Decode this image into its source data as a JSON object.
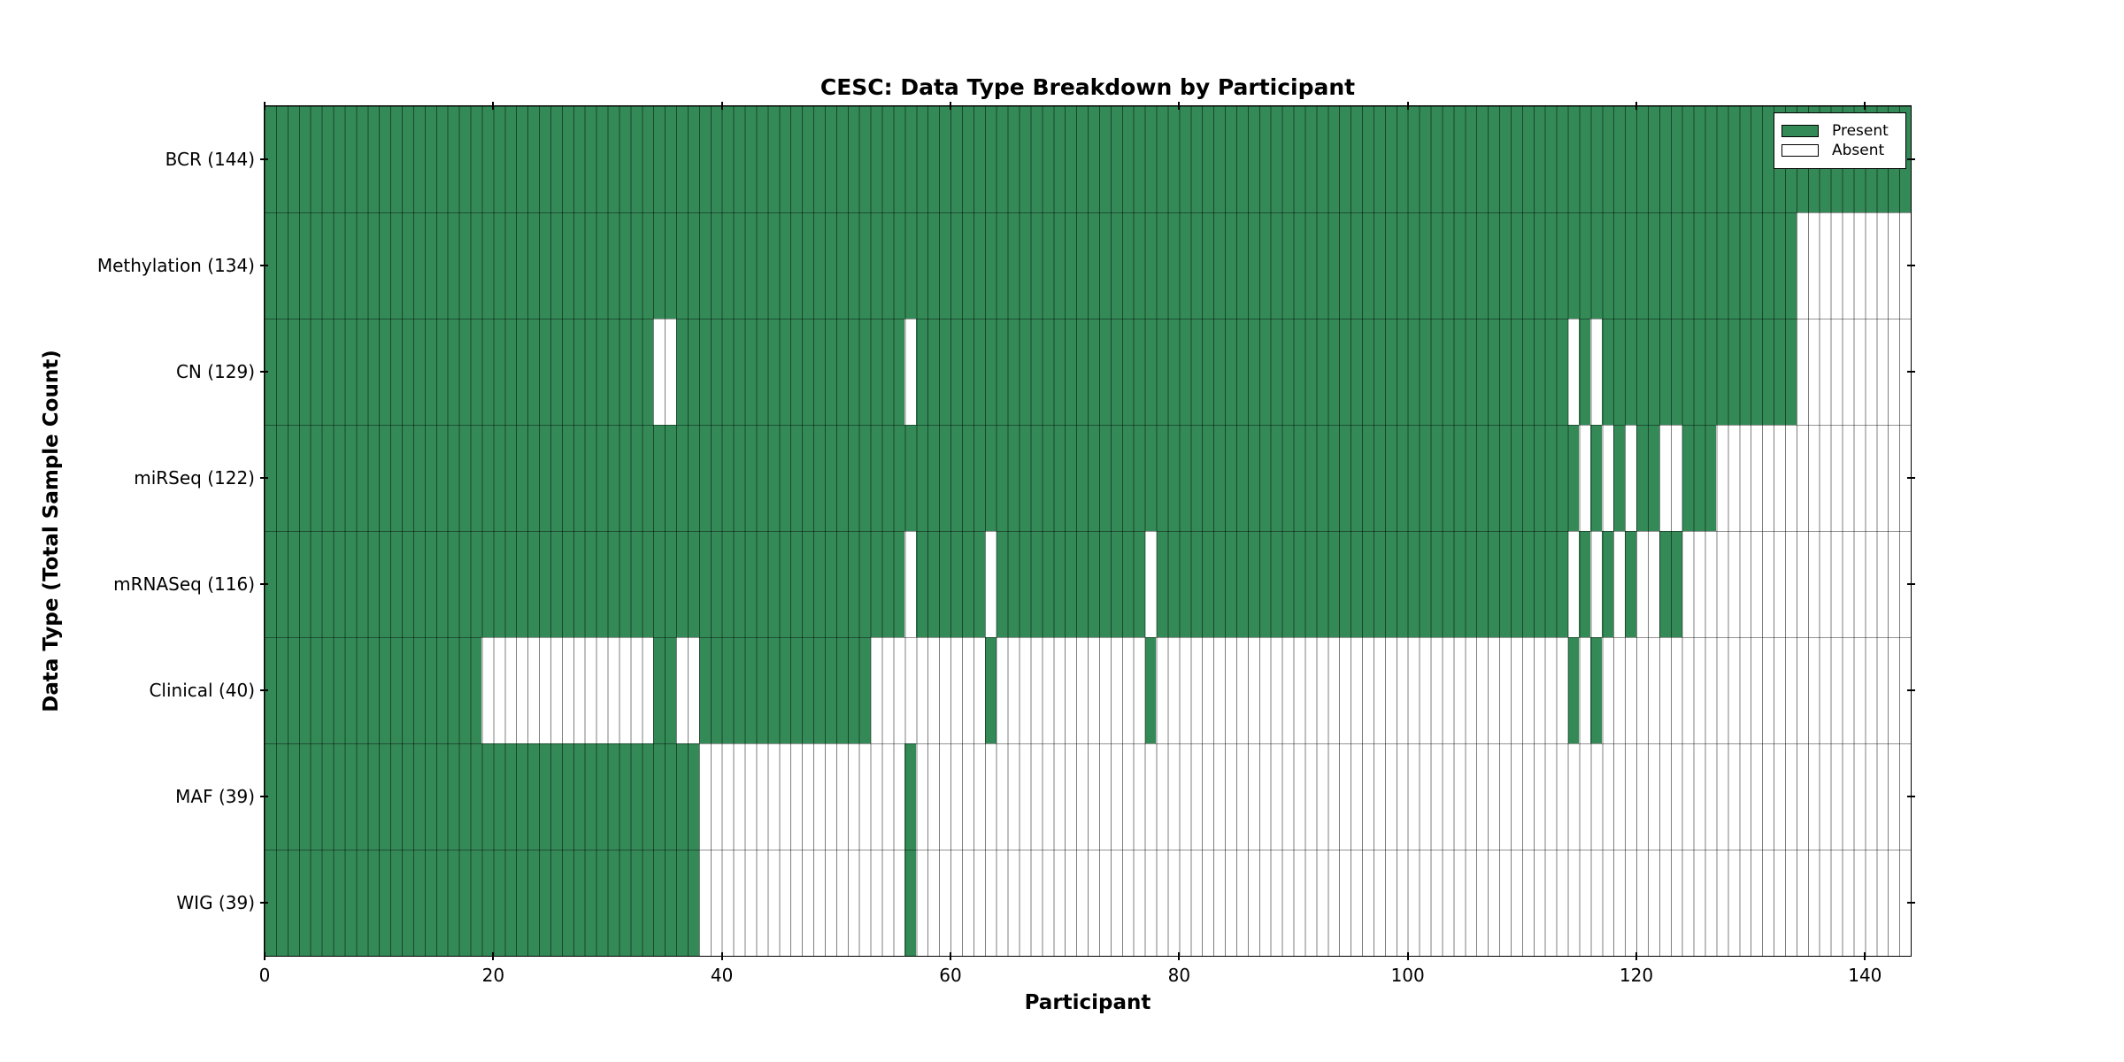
{
  "chart_data": {
    "type": "heatmap",
    "title": "CESC: Data Type Breakdown by Participant",
    "xlabel": "Participant",
    "ylabel": "Data Type (Total Sample Count)",
    "x_ticks": [
      0,
      20,
      40,
      60,
      80,
      100,
      120,
      140
    ],
    "x_range": [
      0,
      144
    ],
    "n_participants": 144,
    "grid": "cell-outlines",
    "legend_position": "upper-right-inside",
    "legend": [
      {
        "label": "Present",
        "color": "#348a57"
      },
      {
        "label": "Absent",
        "color": "#ffffff"
      }
    ],
    "colors": {
      "present": "#348a57",
      "absent": "#ffffff"
    },
    "rows": [
      {
        "name": "BCR",
        "total": 144,
        "present_ranges": [
          [
            0,
            143
          ]
        ]
      },
      {
        "name": "Methylation",
        "total": 134,
        "present_ranges": [
          [
            0,
            133
          ]
        ]
      },
      {
        "name": "CN",
        "total": 129,
        "present_ranges": [
          [
            0,
            33
          ],
          [
            36,
            55
          ],
          [
            57,
            113
          ],
          [
            115,
            115
          ],
          [
            117,
            133
          ]
        ]
      },
      {
        "name": "miRSeq",
        "total": 122,
        "present_ranges": [
          [
            0,
            114
          ],
          [
            116,
            116
          ],
          [
            118,
            118
          ],
          [
            120,
            121
          ],
          [
            124,
            126
          ]
        ]
      },
      {
        "name": "mRNASeq",
        "total": 116,
        "present_ranges": [
          [
            0,
            55
          ],
          [
            57,
            62
          ],
          [
            64,
            76
          ],
          [
            78,
            113
          ],
          [
            115,
            115
          ],
          [
            117,
            117
          ],
          [
            119,
            119
          ],
          [
            122,
            123
          ]
        ]
      },
      {
        "name": "Clinical",
        "total": 40,
        "present_ranges": [
          [
            0,
            18
          ],
          [
            34,
            35
          ],
          [
            38,
            52
          ],
          [
            63,
            63
          ],
          [
            77,
            77
          ],
          [
            114,
            114
          ],
          [
            116,
            116
          ]
        ]
      },
      {
        "name": "MAF",
        "total": 39,
        "present_ranges": [
          [
            0,
            37
          ],
          [
            56,
            56
          ]
        ]
      },
      {
        "name": "WIG",
        "total": 39,
        "present_ranges": [
          [
            0,
            37
          ],
          [
            56,
            56
          ]
        ]
      }
    ]
  }
}
